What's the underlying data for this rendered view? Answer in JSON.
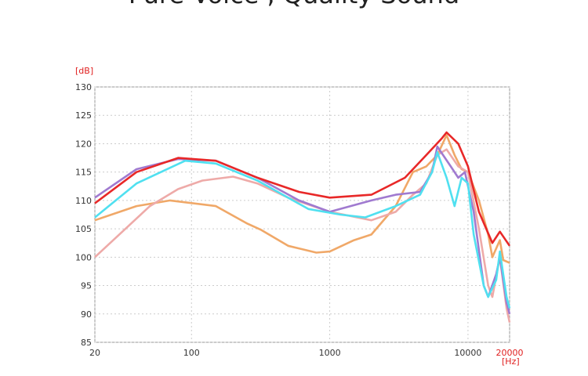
{
  "chart_data": {
    "type": "line",
    "title": "Pure Voice , Quality Sound",
    "y_label": "[dB]",
    "x_label": "[Hz]",
    "log_x": true,
    "grid": true,
    "xlim": [
      20,
      20000
    ],
    "ylim": [
      85,
      130
    ],
    "xticks": [
      20,
      100,
      1000,
      10000,
      20000
    ],
    "yticks": [
      85,
      90,
      95,
      100,
      105,
      110,
      115,
      120,
      125,
      130
    ],
    "series": [
      {
        "color": "#f0a868",
        "x": [
          20,
          40,
          70,
          150,
          250,
          320,
          500,
          800,
          1000,
          1500,
          2000,
          3000,
          4000,
          5000,
          6000,
          7000,
          8000,
          9000,
          10000,
          12000,
          14000,
          15000,
          17000,
          18000,
          20000
        ],
        "values": [
          106.5,
          109,
          110,
          109,
          106,
          104.8,
          102,
          100.8,
          101,
          103,
          104,
          109,
          115,
          116,
          118,
          121.5,
          118,
          115.5,
          115,
          110,
          104,
          100,
          103,
          99.5,
          99
        ]
      },
      {
        "color": "#eeaaa8",
        "x": [
          20,
          30,
          50,
          80,
          120,
          200,
          300,
          500,
          1000,
          2000,
          3000,
          4000,
          5000,
          6000,
          7000,
          8500,
          10000,
          12000,
          14000,
          15000,
          17000,
          19000,
          20000
        ],
        "values": [
          100,
          104,
          109,
          112,
          113.5,
          114.2,
          113,
          110.5,
          108,
          106.5,
          108,
          111,
          113,
          118,
          119,
          116,
          115,
          105,
          95,
          93,
          100,
          91,
          88.5
        ]
      },
      {
        "color": "#a07ad0",
        "x": [
          20,
          40,
          80,
          150,
          300,
          600,
          1000,
          2000,
          3000,
          4500,
          5500,
          6000,
          7500,
          8500,
          9500,
          11000,
          13000,
          14000,
          16000,
          17000,
          19000,
          20000
        ],
        "values": [
          110.5,
          115.5,
          117.3,
          117,
          114,
          110,
          108,
          110,
          111,
          111.5,
          115,
          119.5,
          116,
          114,
          115,
          108,
          95,
          93,
          97,
          100,
          92,
          90
        ]
      },
      {
        "color": "#50e0f0",
        "x": [
          20,
          40,
          90,
          150,
          300,
          700,
          1200,
          1800,
          3000,
          4500,
          5500,
          6000,
          7000,
          8000,
          9000,
          10000,
          11000,
          13000,
          14000,
          16000,
          17000,
          19000,
          20000
        ],
        "values": [
          107,
          113,
          117,
          116.5,
          113.5,
          108.5,
          107.5,
          107,
          109,
          111,
          115,
          118.5,
          114,
          109,
          114,
          113,
          104,
          95,
          93,
          96,
          101,
          93,
          91
        ]
      },
      {
        "color": "#e82828",
        "x": [
          20,
          40,
          80,
          150,
          300,
          600,
          1000,
          2000,
          3500,
          5000,
          6500,
          7000,
          8500,
          10000,
          12000,
          15000,
          17000,
          20000
        ],
        "values": [
          109.5,
          115,
          117.5,
          117,
          114,
          111.5,
          110.5,
          111,
          114,
          118,
          121,
          122,
          120,
          116,
          108,
          102.5,
          104.5,
          102
        ]
      }
    ]
  }
}
